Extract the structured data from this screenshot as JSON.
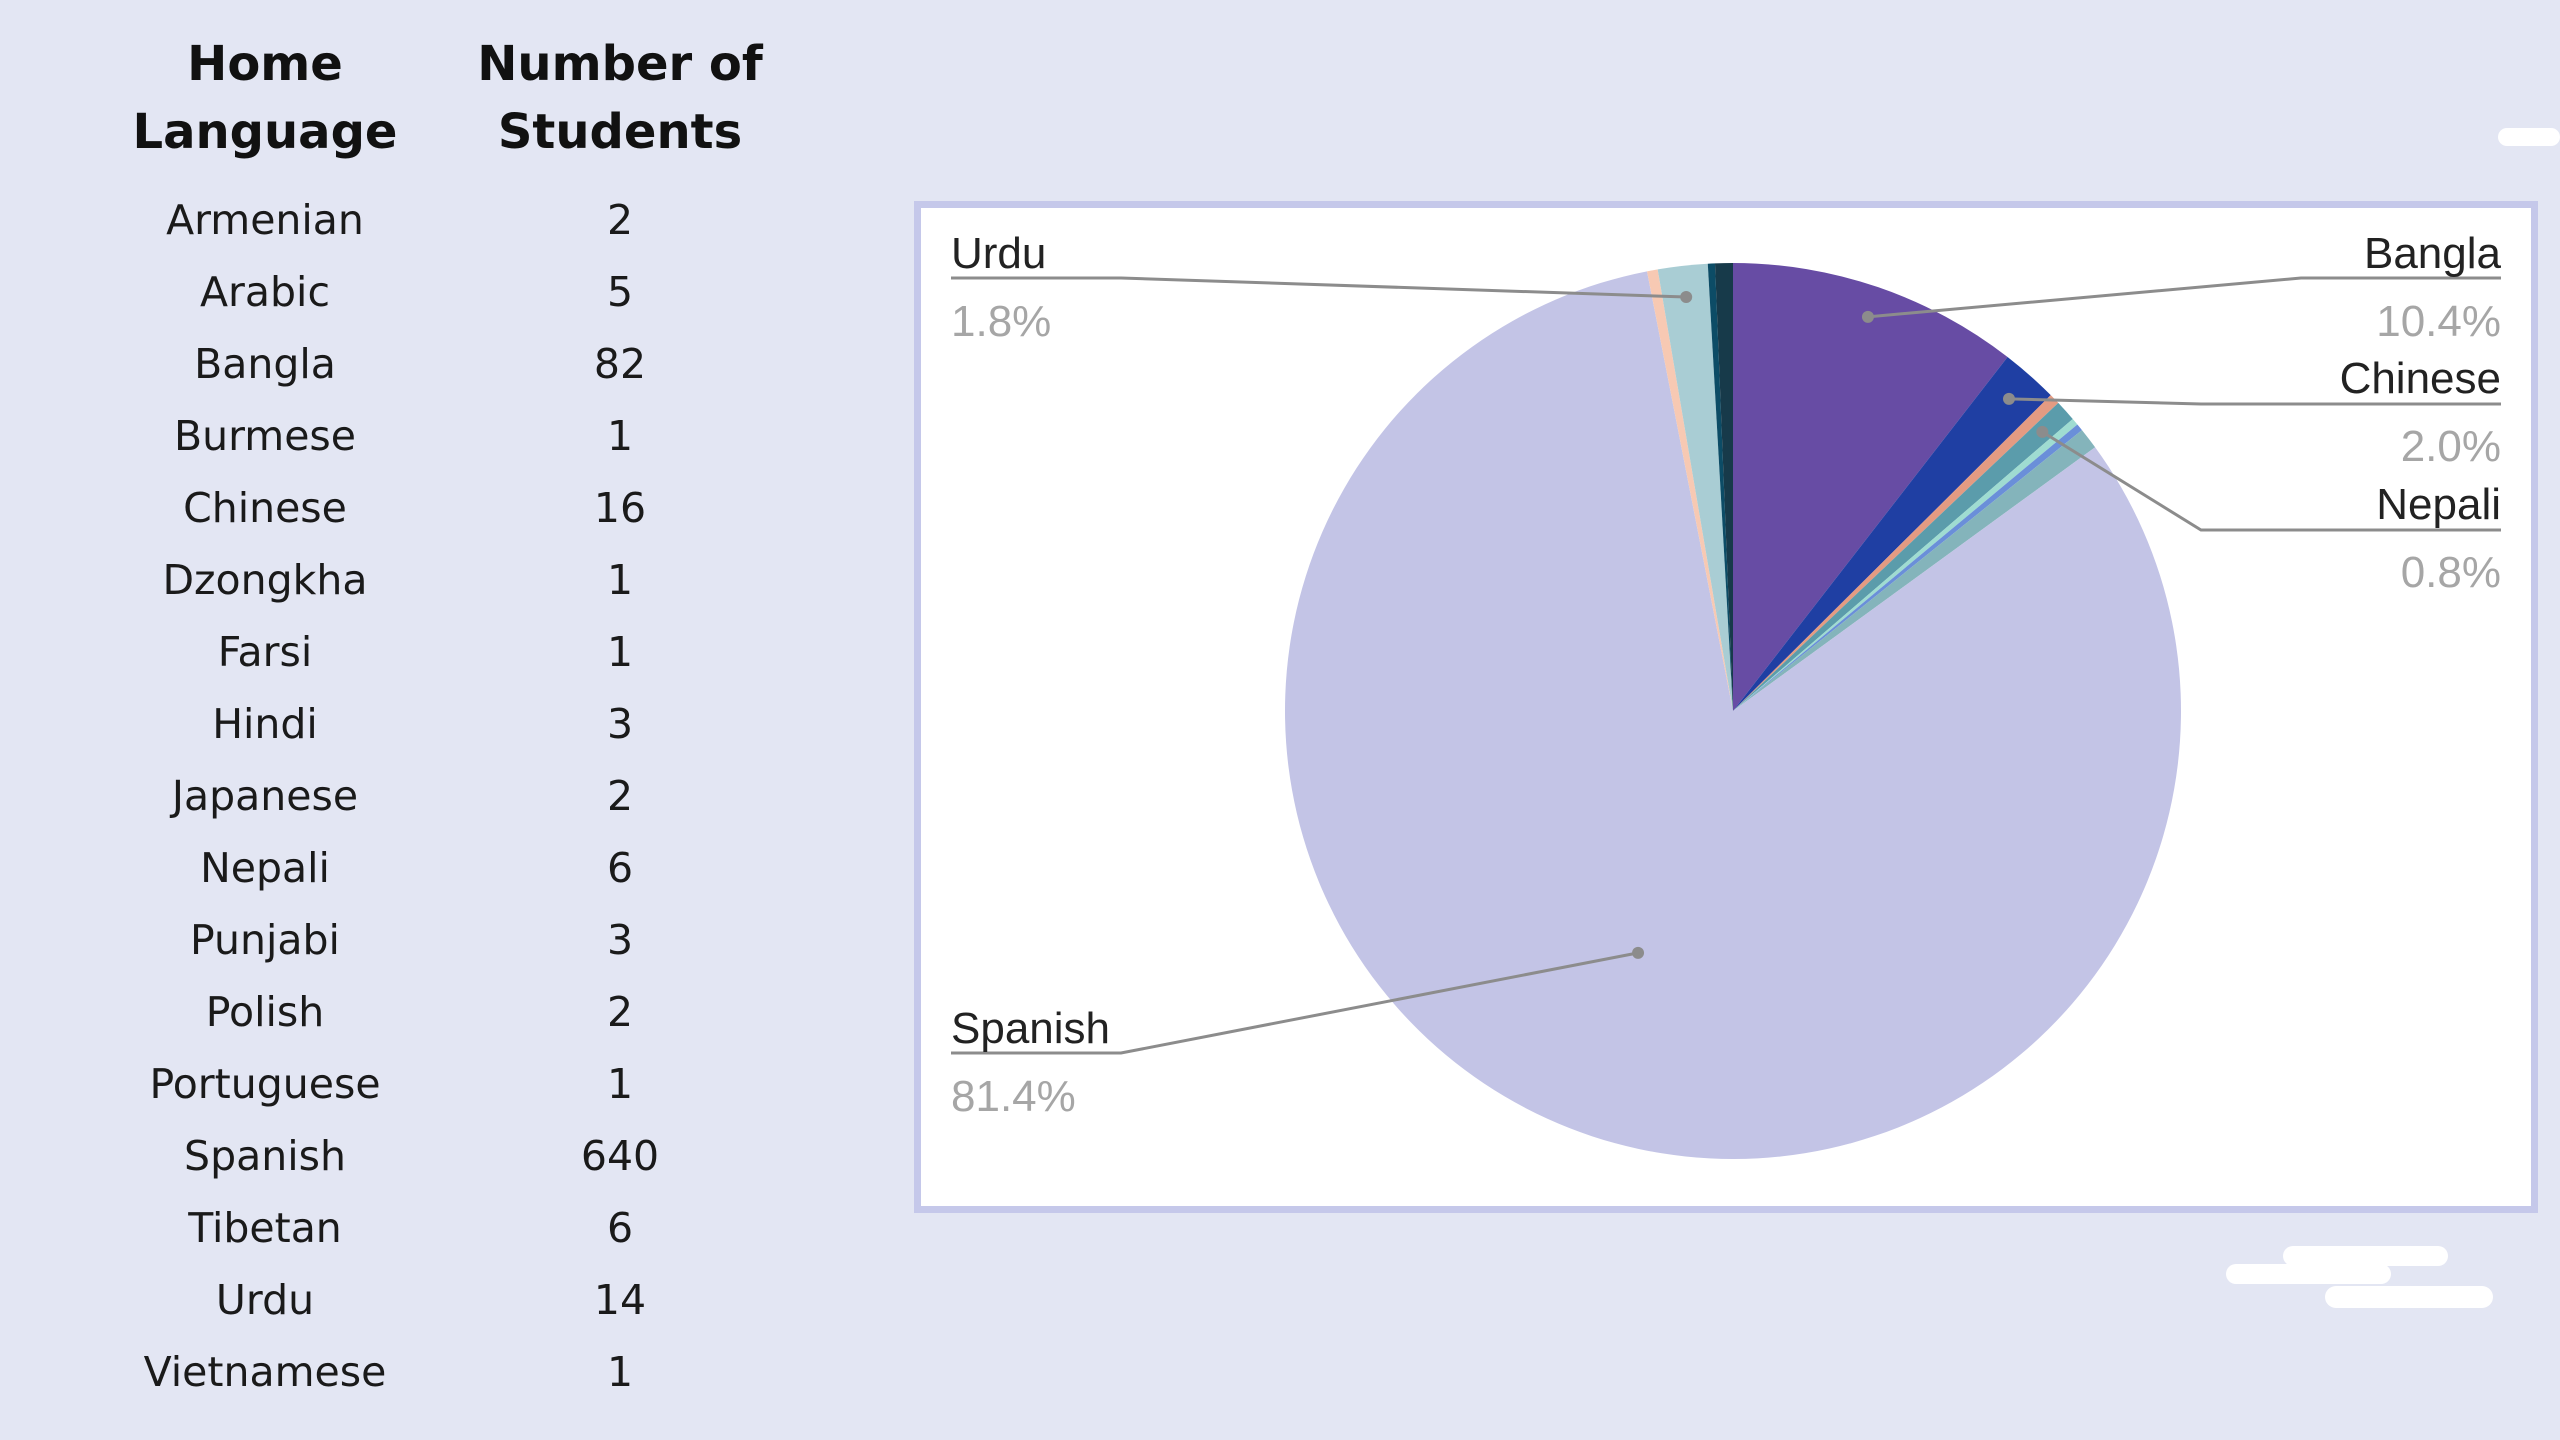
{
  "table": {
    "headers": [
      "Home Language",
      "Number of Students"
    ],
    "rows": [
      [
        "Armenian",
        "2"
      ],
      [
        "Arabic",
        "5"
      ],
      [
        "Bangla",
        "82"
      ],
      [
        "Burmese",
        "1"
      ],
      [
        "Chinese",
        "16"
      ],
      [
        "Dzongkha",
        "1"
      ],
      [
        "Farsi",
        "1"
      ],
      [
        "Hindi",
        "3"
      ],
      [
        "Japanese",
        "2"
      ],
      [
        "Nepali",
        "6"
      ],
      [
        "Punjabi",
        "3"
      ],
      [
        "Polish",
        "2"
      ],
      [
        "Portuguese",
        "1"
      ],
      [
        "Spanish",
        "640"
      ],
      [
        "Tibetan",
        "6"
      ],
      [
        "Urdu",
        "14"
      ],
      [
        "Vietnamese",
        "1"
      ]
    ]
  },
  "chart_data": {
    "type": "pie",
    "title": "",
    "start_category": "Bangla",
    "categories": [
      "Bangla",
      "Chinese",
      "Hindi",
      "Nepali",
      "Japanese",
      "Polish",
      "Tibetan",
      "Spanish",
      "Punjabi",
      "Urdu",
      "Armenian",
      "Arabic"
    ],
    "values": [
      82,
      16,
      3,
      6,
      2,
      2,
      6,
      640,
      3,
      14,
      2,
      5
    ],
    "colors": [
      "#674ca4",
      "#1f3fa3",
      "#e49b82",
      "#5b9cab",
      "#9fdcd1",
      "#6a8fd9",
      "#84b4bb",
      "#c3c4e6",
      "#f7c9b3",
      "#a9cdd4",
      "#0c4c66",
      "#173a4a"
    ],
    "labels": [
      {
        "category": "Urdu",
        "name": "Urdu",
        "percent": "1.8%",
        "side": "left-top"
      },
      {
        "category": "Bangla",
        "name": "Bangla",
        "percent": "10.4%",
        "side": "right-top"
      },
      {
        "category": "Chinese",
        "name": "Chinese",
        "percent": "2.0%",
        "side": "right-mid"
      },
      {
        "category": "Nepali",
        "name": "Nepali",
        "percent": "0.8%",
        "side": "right-low"
      },
      {
        "category": "Spanish",
        "name": "Spanish",
        "percent": "81.4%",
        "side": "left-bottom"
      }
    ]
  }
}
